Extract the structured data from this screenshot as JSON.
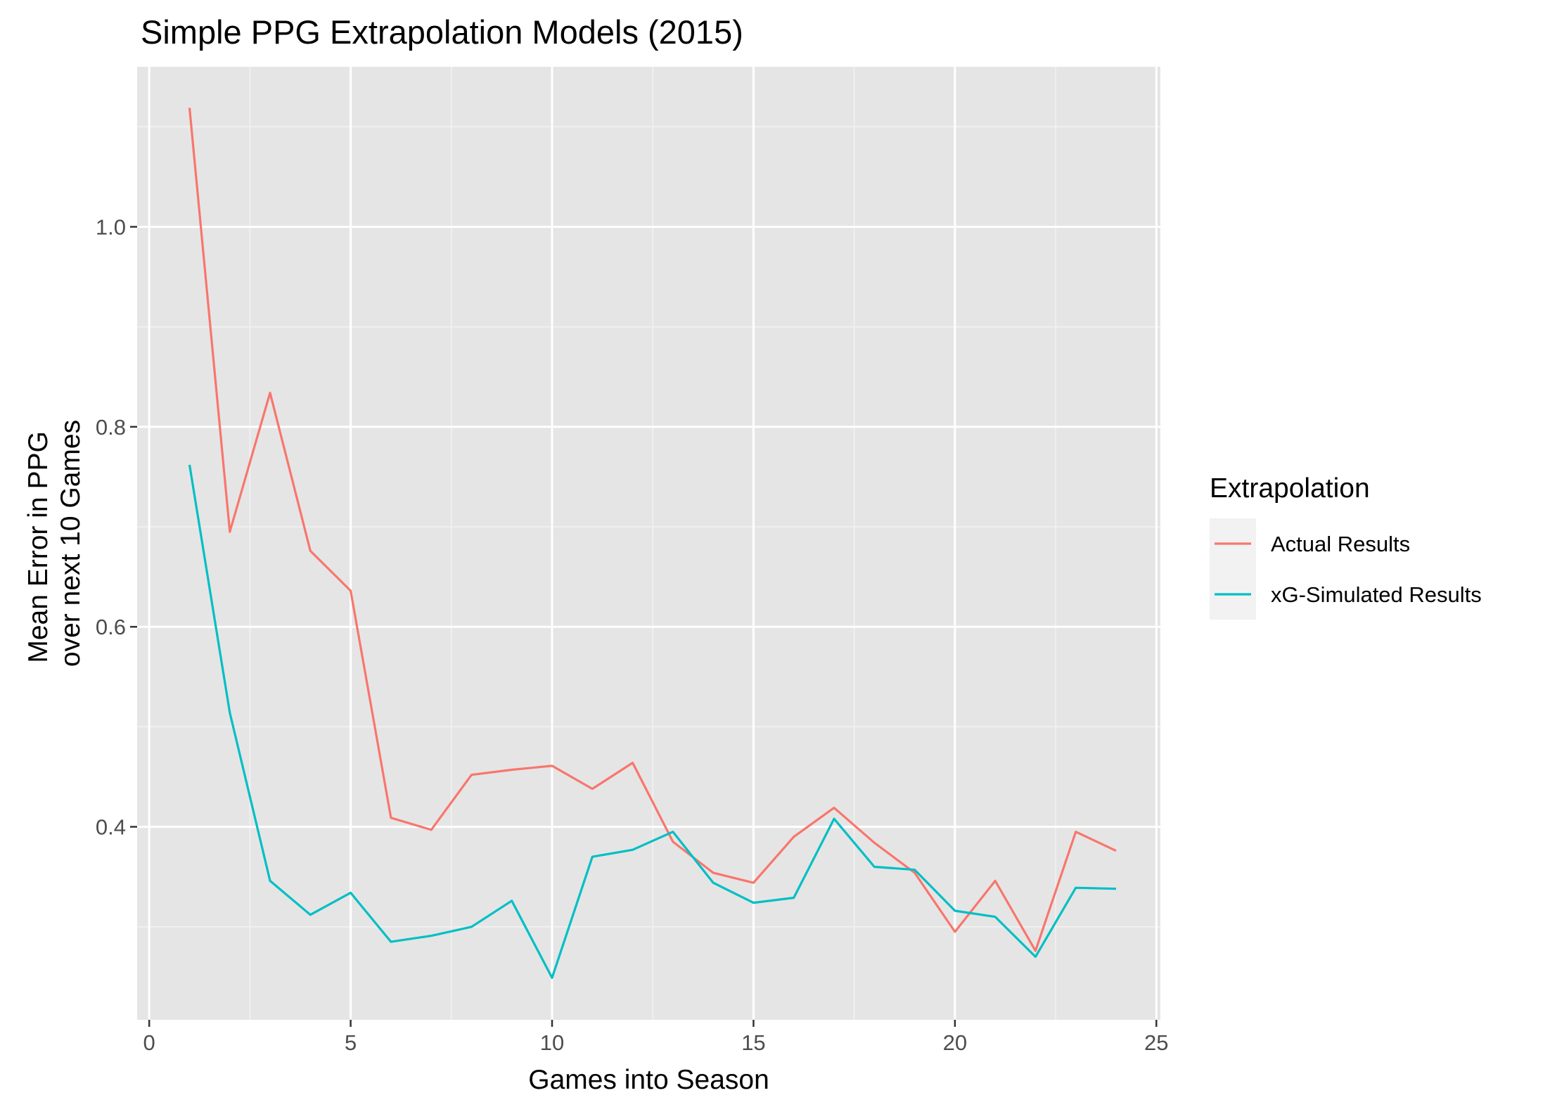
{
  "chart_data": {
    "type": "line",
    "title": "Simple PPG Extrapolation Models (2015)",
    "xlabel": "Games into Season",
    "ylabel": [
      "Mean Error in PPG",
      "over next 10 Games"
    ],
    "xlim": [
      -0.3,
      25.1
    ],
    "ylim": [
      0.207,
      1.16
    ],
    "x_ticks": [
      0,
      5,
      10,
      15,
      20,
      25
    ],
    "x_tick_labels": [
      "0",
      "5",
      "10",
      "15",
      "20",
      "25"
    ],
    "y_ticks": [
      0.4,
      0.6,
      0.8,
      1.0
    ],
    "y_tick_labels": [
      "0.4",
      "0.6",
      "0.8",
      "1.0"
    ],
    "grid": true,
    "legend": {
      "title": "Extrapolation",
      "position": "right"
    },
    "x": [
      1,
      2,
      3,
      4,
      5,
      6,
      7,
      8,
      9,
      10,
      11,
      12,
      13,
      14,
      15,
      16,
      17,
      18,
      19,
      20,
      21,
      22,
      23,
      24
    ],
    "series": [
      {
        "name": "Actual Results",
        "color": "#F8766D",
        "values": [
          1.119,
          0.695,
          0.834,
          0.676,
          0.636,
          0.409,
          0.397,
          0.452,
          0.457,
          0.461,
          0.438,
          0.464,
          0.385,
          0.354,
          0.344,
          0.39,
          0.419,
          0.384,
          0.354,
          0.295,
          0.346,
          0.276,
          0.395,
          0.376
        ]
      },
      {
        "name": "xG-Simulated Results",
        "color": "#00BFC4",
        "values": [
          0.762,
          0.514,
          0.346,
          0.312,
          0.334,
          0.285,
          0.291,
          0.3,
          0.326,
          0.249,
          0.37,
          0.377,
          0.395,
          0.344,
          0.324,
          0.329,
          0.408,
          0.36,
          0.357,
          0.316,
          0.31,
          0.27,
          0.339,
          0.338
        ]
      }
    ]
  }
}
